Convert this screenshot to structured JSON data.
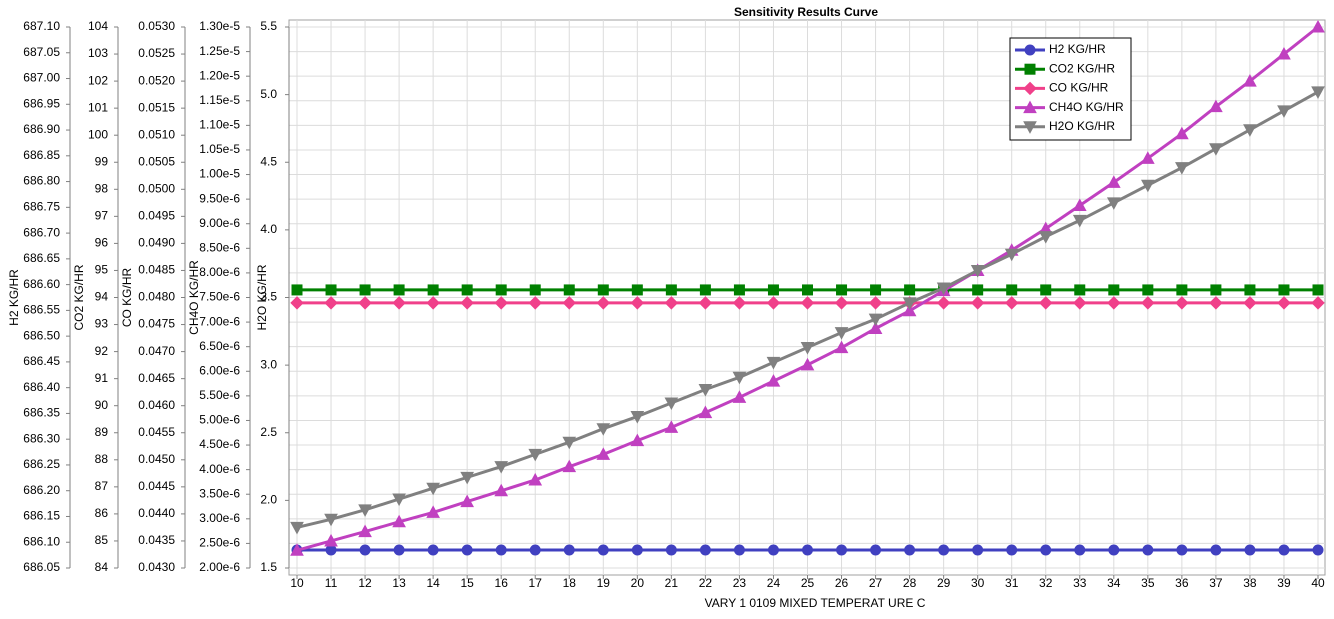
{
  "chart_data": {
    "type": "line",
    "title": "Sensitivity Results Curve",
    "xlabel": "VARY   1 0109 MIXED TEMPERAT URE C",
    "x": [
      10,
      11,
      12,
      13,
      14,
      15,
      16,
      17,
      18,
      19,
      20,
      21,
      22,
      23,
      24,
      25,
      26,
      27,
      28,
      29,
      30,
      31,
      32,
      33,
      34,
      35,
      36,
      37,
      38,
      39,
      40
    ],
    "xlim": [
      10,
      40
    ],
    "xticks": [
      10,
      11,
      12,
      13,
      14,
      15,
      16,
      17,
      18,
      19,
      20,
      21,
      22,
      23,
      24,
      25,
      26,
      27,
      28,
      29,
      30,
      31,
      32,
      33,
      34,
      35,
      36,
      37,
      38,
      39,
      40
    ],
    "ylabel": "H2O KG/HR",
    "ylim": [
      1.5,
      5.5
    ],
    "yticks": [
      1.5,
      {
        "value": 2,
        "label": "2.0"
      },
      2.5,
      {
        "value": 3,
        "label": "3.0"
      },
      3.5,
      {
        "value": 4,
        "label": "4.0"
      },
      4.5,
      {
        "value": 5,
        "label": "5.0"
      },
      5.5
    ],
    "y2label": "CH4O KG/HR",
    "y2lim": [
      2e-06,
      1.3e-05
    ],
    "y2ticks": [
      {
        "value": 2e-06,
        "label": "2.00e-6"
      },
      {
        "value": 2.5e-06,
        "label": "2.50e-6"
      },
      {
        "value": 3e-06,
        "label": "3.00e-6"
      },
      {
        "value": 3.5e-06,
        "label": "3.50e-6"
      },
      {
        "value": 4e-06,
        "label": "4.00e-6"
      },
      {
        "value": 4.5e-06,
        "label": "4.50e-6"
      },
      {
        "value": 5e-06,
        "label": "5.00e-6"
      },
      {
        "value": 5.5e-06,
        "label": "5.50e-6"
      },
      {
        "value": 6e-06,
        "label": "6.00e-6"
      },
      {
        "value": 6.5e-06,
        "label": "6.50e-6"
      },
      {
        "value": 7e-06,
        "label": "7.00e-6"
      },
      {
        "value": 7.5e-06,
        "label": "7.50e-6"
      },
      {
        "value": 8e-06,
        "label": "8.00e-6"
      },
      {
        "value": 8.5e-06,
        "label": "8.50e-6"
      },
      {
        "value": 9e-06,
        "label": "9.00e-6"
      },
      {
        "value": 9.5e-06,
        "label": "9.50e-6"
      },
      {
        "value": 1e-05,
        "label": "1.00e-5"
      },
      {
        "value": 1.05e-05,
        "label": "1.05e-5"
      },
      {
        "value": 1.1e-05,
        "label": "1.10e-5"
      },
      {
        "value": 1.15e-05,
        "label": "1.15e-5"
      },
      {
        "value": 1.2e-05,
        "label": "1.20e-5"
      },
      {
        "value": 1.25e-05,
        "label": "1.25e-5"
      },
      {
        "value": 1.3e-05,
        "label": "1.30e-5"
      }
    ],
    "y3label": "CO KG/HR",
    "y3lim": [
      0.043,
      0.053
    ],
    "y3ticks": [
      {
        "value": 0.043,
        "label": "0.0430"
      },
      0.0435,
      {
        "value": 0.044,
        "label": "0.0440"
      },
      0.0445,
      {
        "value": 0.045,
        "label": "0.0450"
      },
      0.0455,
      {
        "value": 0.046,
        "label": "0.0460"
      },
      0.0465,
      {
        "value": 0.047,
        "label": "0.0470"
      },
      0.0475,
      {
        "value": 0.048,
        "label": "0.0480"
      },
      0.0485,
      {
        "value": 0.049,
        "label": "0.0490"
      },
      0.0495,
      {
        "value": 0.05,
        "label": "0.0500"
      },
      0.0505,
      {
        "value": 0.051,
        "label": "0.0510"
      },
      0.0515,
      {
        "value": 0.052,
        "label": "0.0520"
      },
      0.0525,
      {
        "value": 0.053,
        "label": "0.0530"
      }
    ],
    "y4label": "CO2 KG/HR",
    "y4lim": [
      84,
      104
    ],
    "y4ticks": [
      84,
      85,
      86,
      87,
      88,
      89,
      90,
      91,
      92,
      93,
      94,
      95,
      96,
      97,
      98,
      99,
      100,
      101,
      102,
      103,
      104
    ],
    "y5label": "H2 KG/HR",
    "y5lim": [
      686.05,
      687.1
    ],
    "y5ticks": [
      686.05,
      {
        "value": 686.1,
        "label": "686.10"
      },
      686.15,
      {
        "value": 686.2,
        "label": "686.20"
      },
      686.25,
      {
        "value": 686.3,
        "label": "686.30"
      },
      686.35,
      {
        "value": 686.4,
        "label": "686.40"
      },
      686.45,
      {
        "value": 686.5,
        "label": "686.50"
      },
      686.55,
      {
        "value": 686.6,
        "label": "686.60"
      },
      686.65,
      {
        "value": 686.7,
        "label": "686.70"
      },
      686.75,
      {
        "value": 686.8,
        "label": "686.80"
      },
      686.85,
      {
        "value": 686.9,
        "label": "686.90"
      },
      686.95,
      {
        "value": 687,
        "label": "687.00"
      },
      687.05,
      {
        "value": 687.1,
        "label": "687.10"
      }
    ],
    "grid": true,
    "legend": "upper right",
    "series": [
      {
        "name": "H2 KG/HR",
        "color": "#4040c0",
        "marker": "circle",
        "axis": "y5",
        "values": [
          686.085,
          686.085,
          686.085,
          686.085,
          686.085,
          686.085,
          686.085,
          686.085,
          686.085,
          686.085,
          686.085,
          686.085,
          686.085,
          686.085,
          686.085,
          686.085,
          686.085,
          686.085,
          686.085,
          686.085,
          686.085,
          686.085,
          686.085,
          686.085,
          686.085,
          686.085,
          686.085,
          686.085,
          686.085,
          686.085,
          686.085
        ]
      },
      {
        "name": "CO2 KG/HR",
        "color": "#008000",
        "marker": "square",
        "axis": "y4",
        "values": [
          94.28,
          94.28,
          94.28,
          94.28,
          94.28,
          94.28,
          94.28,
          94.28,
          94.28,
          94.28,
          94.28,
          94.28,
          94.28,
          94.28,
          94.28,
          94.28,
          94.28,
          94.28,
          94.28,
          94.28,
          94.28,
          94.28,
          94.28,
          94.28,
          94.28,
          94.28,
          94.28,
          94.28,
          94.28,
          94.28,
          94.28
        ]
      },
      {
        "name": "CO KG/HR",
        "color": "#f0408a",
        "marker": "diamond",
        "axis": "y3",
        "values": [
          0.0479,
          0.0479,
          0.0479,
          0.0479,
          0.0479,
          0.0479,
          0.0479,
          0.0479,
          0.0479,
          0.0479,
          0.0479,
          0.0479,
          0.0479,
          0.0479,
          0.0479,
          0.0479,
          0.0479,
          0.0479,
          0.0479,
          0.0479,
          0.0479,
          0.0479,
          0.0479,
          0.0479,
          0.0479,
          0.0479,
          0.0479,
          0.0479,
          0.0479,
          0.0479,
          0.0479
        ]
      },
      {
        "name": "CH4O KG/HR",
        "color": "#c040c0",
        "marker": "triangle-up",
        "axis": "y2",
        "values": [
          2.36e-06,
          2.55e-06,
          2.74e-06,
          2.94e-06,
          3.13e-06,
          3.35e-06,
          3.57e-06,
          3.79e-06,
          4.06e-06,
          4.31e-06,
          4.59e-06,
          4.86e-06,
          5.16e-06,
          5.47e-06,
          5.8e-06,
          6.13e-06,
          6.48e-06,
          6.87e-06,
          7.23e-06,
          7.64e-06,
          8.05e-06,
          8.46e-06,
          8.9e-06,
          9.37e-06,
          9.84e-06,
          1.033e-05,
          1.083e-05,
          1.138e-05,
          1.19e-05,
          1.245e-05,
          1.3e-05
        ]
      },
      {
        "name": "H2O KG/HR",
        "color": "#808080",
        "marker": "triangle-down",
        "axis": "y",
        "values": [
          1.8,
          1.86,
          1.93,
          2.01,
          2.09,
          2.17,
          2.25,
          2.34,
          2.43,
          2.53,
          2.62,
          2.72,
          2.82,
          2.91,
          3.02,
          3.13,
          3.24,
          3.34,
          3.46,
          3.57,
          3.7,
          3.82,
          3.95,
          4.07,
          4.2,
          4.33,
          4.46,
          4.6,
          4.74,
          4.88,
          5.02
        ]
      }
    ]
  }
}
